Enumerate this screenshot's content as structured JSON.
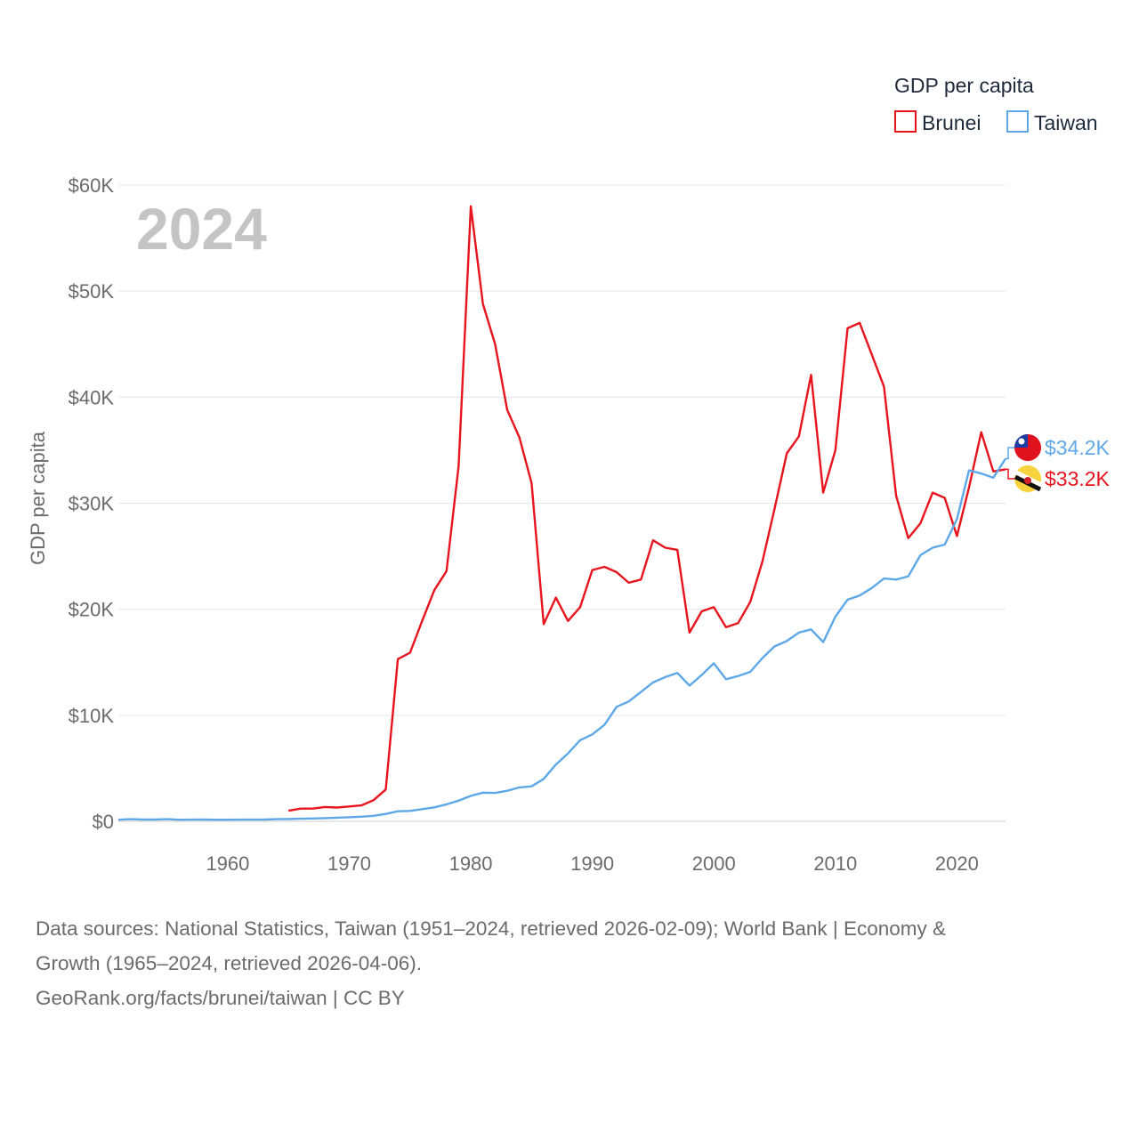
{
  "chart_data": {
    "type": "line",
    "title": "GDP per capita",
    "year_label": "2024",
    "ylabel": "GDP per capita",
    "xlabel": "",
    "xlim": [
      1951,
      2024
    ],
    "ylim": [
      0,
      60000
    ],
    "y_ticks": [
      {
        "value": 0,
        "label": "$0"
      },
      {
        "value": 10000,
        "label": "$10K"
      },
      {
        "value": 20000,
        "label": "$20K"
      },
      {
        "value": 30000,
        "label": "$30K"
      },
      {
        "value": 40000,
        "label": "$40K"
      },
      {
        "value": 50000,
        "label": "$50K"
      },
      {
        "value": 60000,
        "label": "$60K"
      }
    ],
    "x_ticks": [
      {
        "value": 1960,
        "label": "1960"
      },
      {
        "value": 1970,
        "label": "1970"
      },
      {
        "value": 1980,
        "label": "1980"
      },
      {
        "value": 1990,
        "label": "1990"
      },
      {
        "value": 2000,
        "label": "2000"
      },
      {
        "value": 2010,
        "label": "2010"
      },
      {
        "value": 2020,
        "label": "2020"
      }
    ],
    "grid": true,
    "legend_position": "top-right",
    "series": [
      {
        "name": "Brunei",
        "color": "#e8141d",
        "end_label": "$33.2K",
        "icon": "brunei-flag-icon",
        "x": [
          1965,
          1966,
          1967,
          1968,
          1969,
          1970,
          1971,
          1972,
          1973,
          1974,
          1975,
          1976,
          1977,
          1978,
          1979,
          1980,
          1981,
          1982,
          1983,
          1984,
          1985,
          1986,
          1987,
          1988,
          1989,
          1990,
          1991,
          1992,
          1993,
          1994,
          1995,
          1996,
          1997,
          1998,
          1999,
          2000,
          2001,
          2002,
          2003,
          2004,
          2005,
          2006,
          2007,
          2008,
          2009,
          2010,
          2011,
          2012,
          2013,
          2014,
          2015,
          2016,
          2017,
          2018,
          2019,
          2020,
          2021,
          2022,
          2023,
          2024
        ],
        "values": [
          1000,
          1200,
          1200,
          1350,
          1300,
          1400,
          1500,
          2000,
          3000,
          15300,
          15900,
          18900,
          21800,
          23600,
          33500,
          58000,
          48800,
          45000,
          38800,
          36200,
          31900,
          18600,
          21100,
          18900,
          20200,
          23700,
          24000,
          23500,
          22500,
          22800,
          26500,
          25800,
          25600,
          17800,
          19800,
          20200,
          18300,
          18700,
          20700,
          24500,
          29500,
          34700,
          36300,
          42100,
          31000,
          35000,
          46500,
          47000,
          44000,
          41000,
          30700,
          26700,
          28100,
          31000,
          30500,
          26900,
          31500,
          36700,
          33000,
          33200
        ]
      },
      {
        "name": "Taiwan",
        "color": "#5ea8e8",
        "end_label": "$34.2K",
        "icon": "taiwan-flag-icon",
        "x": [
          1951,
          1952,
          1953,
          1954,
          1955,
          1956,
          1957,
          1958,
          1959,
          1960,
          1961,
          1962,
          1963,
          1964,
          1965,
          1966,
          1967,
          1968,
          1969,
          1970,
          1971,
          1972,
          1973,
          1974,
          1975,
          1976,
          1977,
          1978,
          1979,
          1980,
          1981,
          1982,
          1983,
          1984,
          1985,
          1986,
          1987,
          1988,
          1989,
          1990,
          1991,
          1992,
          1993,
          1994,
          1995,
          1996,
          1997,
          1998,
          1999,
          2000,
          2001,
          2002,
          2003,
          2004,
          2005,
          2006,
          2007,
          2008,
          2009,
          2010,
          2011,
          2012,
          2013,
          2014,
          2015,
          2016,
          2017,
          2018,
          2019,
          2020,
          2021,
          2022,
          2023,
          2024
        ],
        "values": [
          150,
          200,
          170,
          170,
          200,
          150,
          160,
          170,
          150,
          150,
          160,
          160,
          170,
          200,
          220,
          240,
          270,
          300,
          340,
          390,
          440,
          520,
          700,
          950,
          980,
          1150,
          1320,
          1600,
          1950,
          2400,
          2700,
          2680,
          2880,
          3200,
          3300,
          4000,
          5350,
          6400,
          7650,
          8200,
          9100,
          10800,
          11300,
          12200,
          13100,
          13600,
          14000,
          12800,
          13800,
          14900,
          13400,
          13700,
          14100,
          15400,
          16500,
          17000,
          17800,
          18100,
          16900,
          19300,
          20900,
          21300,
          22000,
          22900,
          22800,
          23100,
          25100,
          25800,
          26100,
          28500,
          33100,
          32800,
          32400,
          34200
        ]
      }
    ]
  },
  "footer": {
    "sources_line1": "Data sources: National Statistics, Taiwan (1951–2024, retrieved 2026-02-09); World Bank | Economy &",
    "sources_line2": "Growth (1965–2024, retrieved 2026-04-06).",
    "attribution": "GeoRank.org/facts/brunei/taiwan | CC BY"
  }
}
